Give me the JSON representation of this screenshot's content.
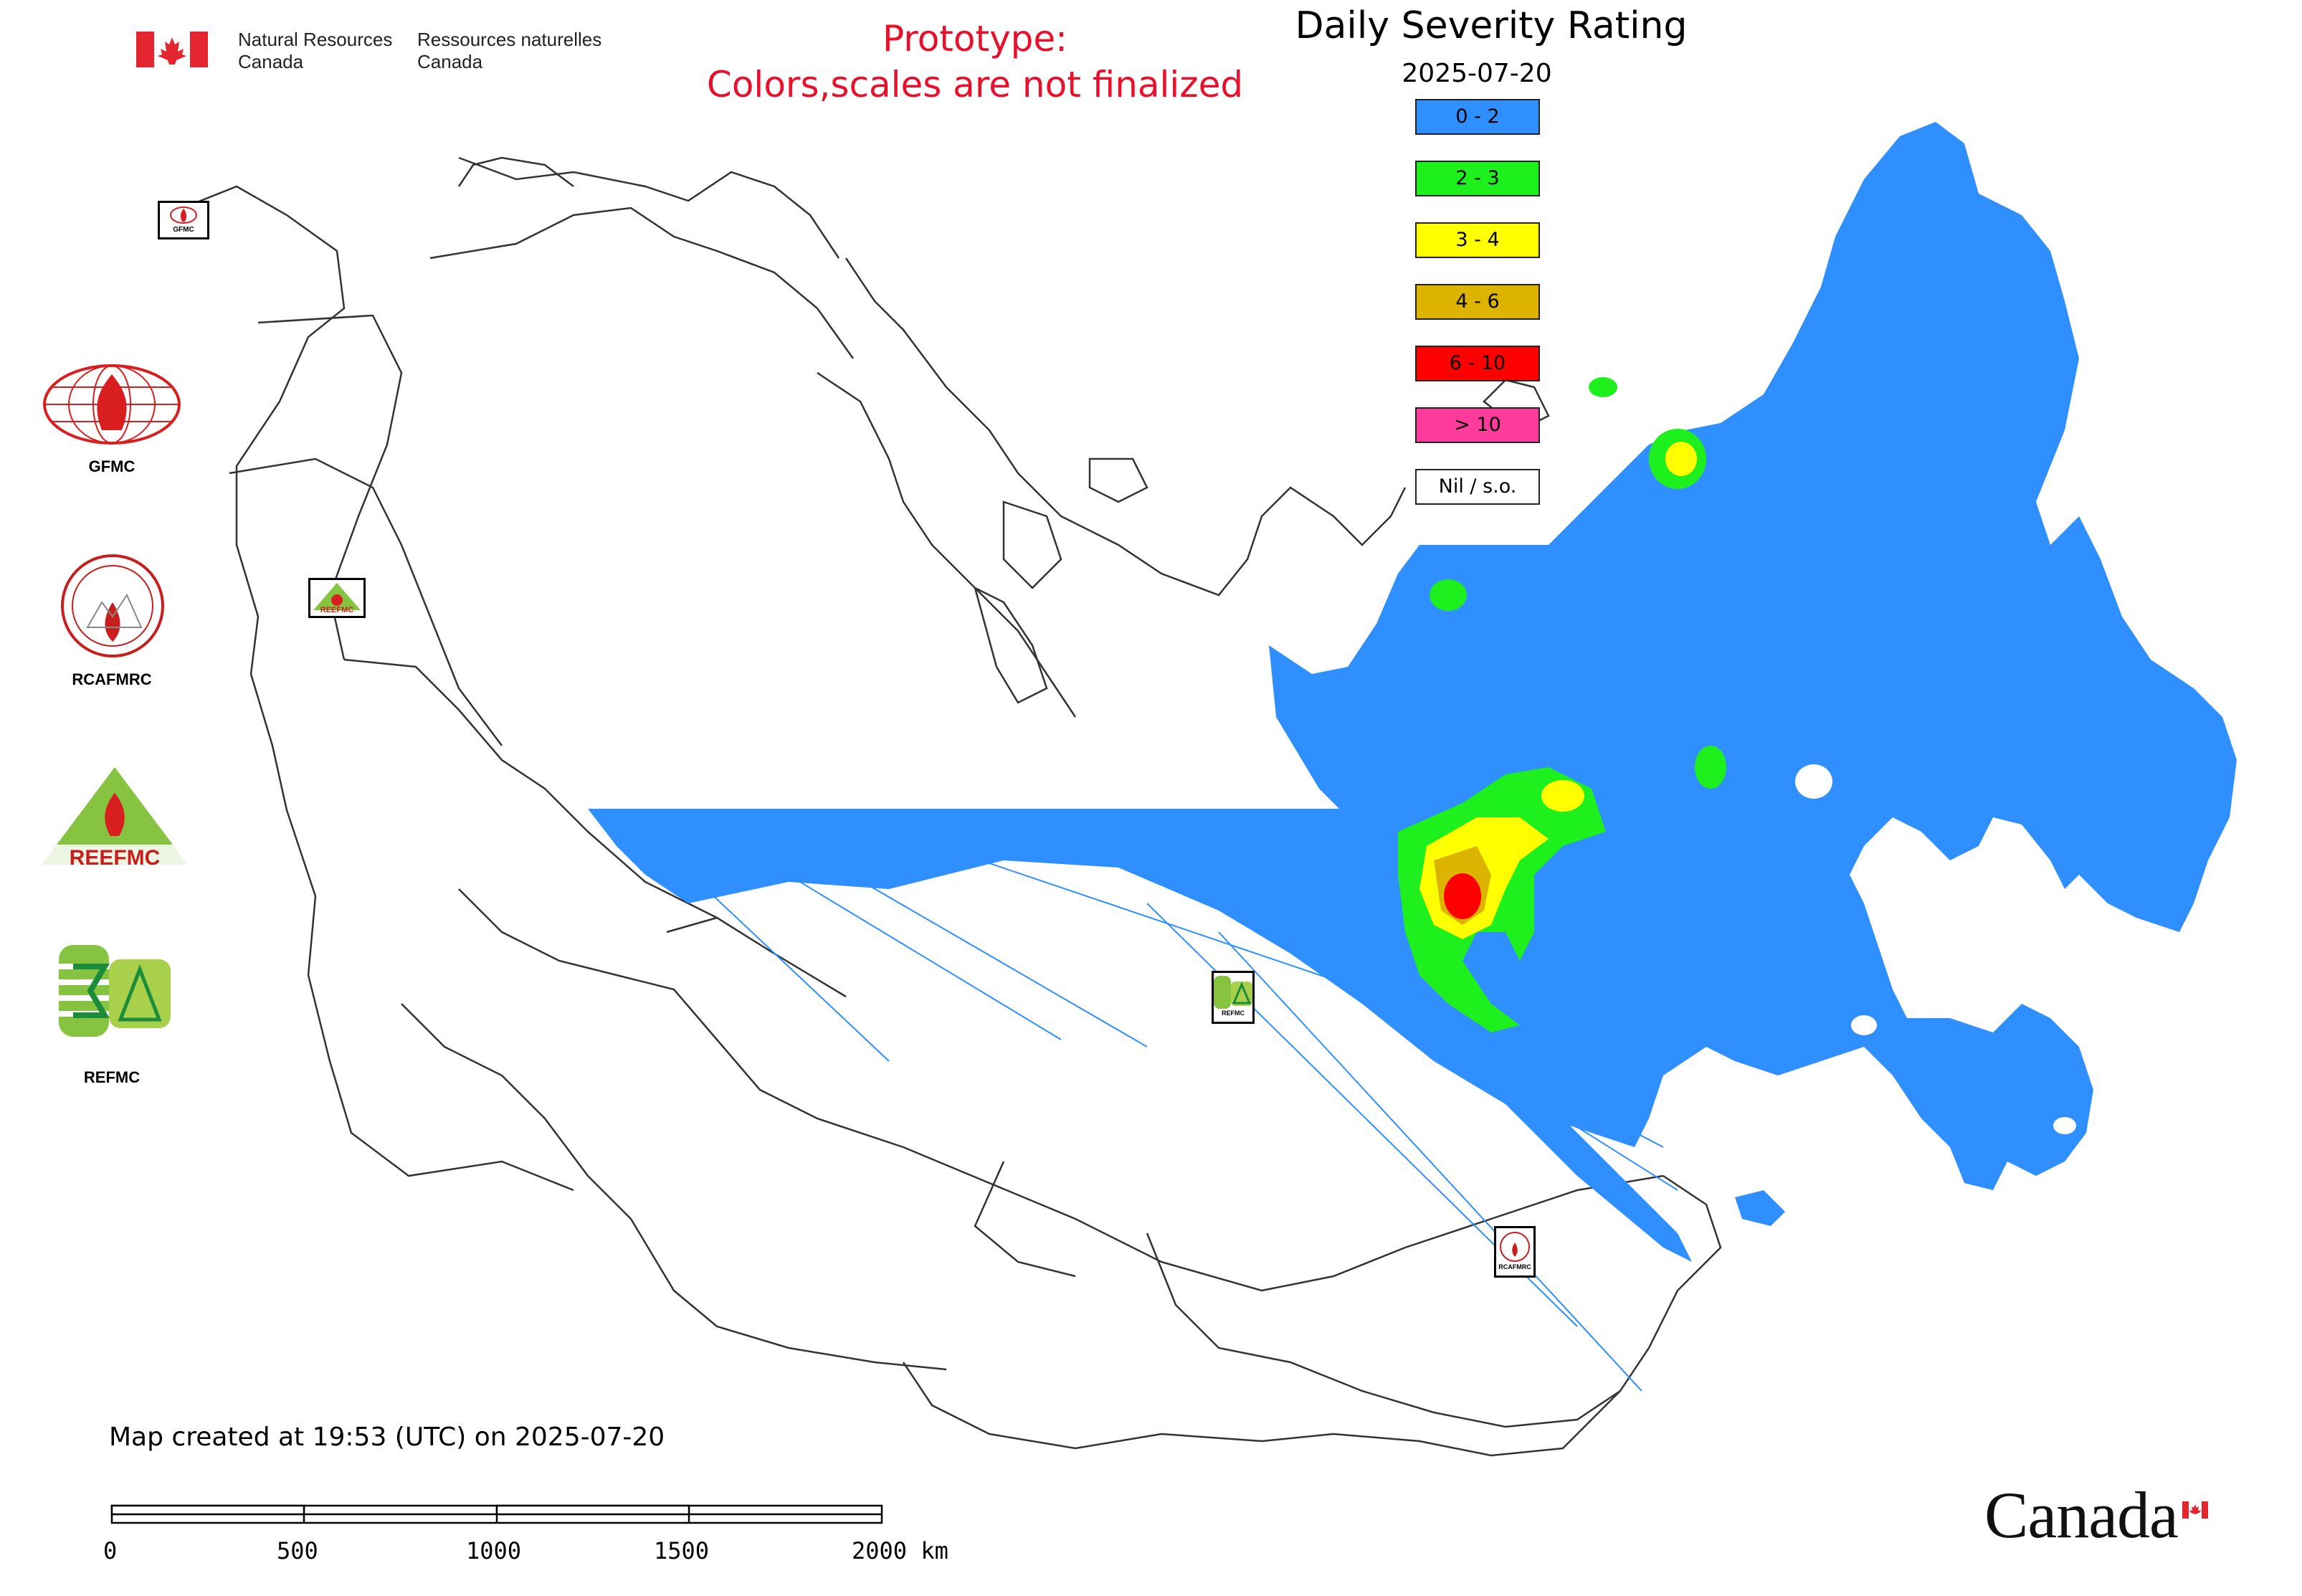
{
  "header": {
    "agency_en": [
      "Natural Resources",
      "Canada"
    ],
    "agency_fr": [
      "Ressources naturelles",
      "Canada"
    ],
    "prototype_line1": "Prototype:",
    "prototype_line2": "Colors,scales are not finalized",
    "title": "Daily Severity Rating",
    "date": "2025-07-20"
  },
  "legend": [
    {
      "label": "0 - 2",
      "color": "#2f8fff"
    },
    {
      "label": "2 - 3",
      "color": "#1ef01e"
    },
    {
      "label": "3 - 4",
      "color": "#ffff00"
    },
    {
      "label": "4 - 6",
      "color": "#dcb400"
    },
    {
      "label": "6 - 10",
      "color": "#ff0000"
    },
    {
      "label": "> 10",
      "color": "#ff3c9c"
    },
    {
      "label": "Nil / s.o.",
      "color": "#ffffff"
    }
  ],
  "logos": [
    {
      "label": "GFMC"
    },
    {
      "label": "RCAFMRC"
    },
    {
      "label": "REEFMC"
    },
    {
      "label": "REFMC"
    }
  ],
  "map_markers": [
    {
      "label": "GFMC"
    },
    {
      "label": "REEFMC"
    },
    {
      "label": "REFMC"
    },
    {
      "label": "RCAFMRC"
    }
  ],
  "footer": {
    "created_text": "Map created at 19:53 (UTC) on 2025-07-20",
    "scale_labels": [
      "0",
      "500",
      "1000",
      "1500",
      "2000 km"
    ],
    "wordmark": "Canada"
  },
  "colors": {
    "prototype_text": "#e8102a",
    "flag_red": "#e3262f"
  }
}
